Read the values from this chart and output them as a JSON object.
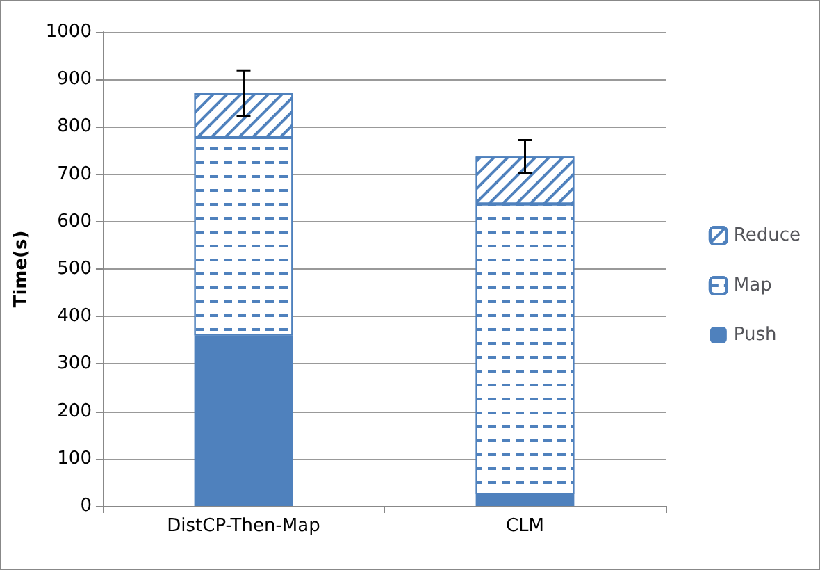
{
  "chart_data": {
    "type": "bar",
    "ylabel": "Time(s)",
    "categories": [
      "DistCP-Then-Map",
      "CLM"
    ],
    "stacked": true,
    "series": [
      {
        "name": "Push",
        "color": "#4f81bd",
        "values": [
          360,
          25
        ]
      },
      {
        "name": "Map",
        "color": "#4f81bd",
        "values": [
          417,
          612
        ]
      },
      {
        "name": "Reduce",
        "color": "#4f81bd",
        "values": [
          94,
          100
        ],
        "errors": [
          48,
          35
        ]
      }
    ],
    "ylim": [
      0,
      1000
    ],
    "yticks": [
      0,
      100,
      200,
      300,
      400,
      500,
      600,
      700,
      800,
      900,
      1000
    ],
    "grid": "y",
    "legend": "right"
  }
}
